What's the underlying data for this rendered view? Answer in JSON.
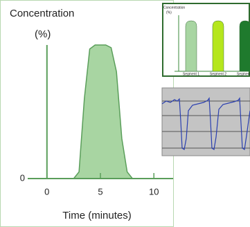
{
  "chart_data": [
    {
      "type": "area",
      "title": "Concentration",
      "y_label": "(%)",
      "x_label": "Time (minutes)",
      "x": [
        2.5,
        3,
        3.5,
        4,
        4.5,
        5,
        5.5,
        6,
        6.5,
        7,
        7.5,
        8
      ],
      "values": [
        0,
        5,
        60,
        97,
        100,
        100,
        100,
        98,
        80,
        30,
        5,
        0
      ],
      "xlim": [
        -1.8,
        11.8
      ],
      "ylim": [
        0,
        100
      ],
      "xticks": [
        0,
        5,
        10
      ],
      "yticks": [
        0
      ],
      "color": "#a8d5a2",
      "line_color": "#5a9e5a"
    },
    {
      "type": "peaks",
      "title": "Concentration",
      "y_label": "(%)",
      "categories": [
        "Segment 1",
        "Segment 2",
        "Segment 3"
      ],
      "values": [
        100,
        100,
        100
      ],
      "ylim": [
        0,
        100
      ],
      "colors": [
        "#a8d5a2",
        "#b5e61d",
        "#1f7a2d"
      ]
    }
  ]
}
